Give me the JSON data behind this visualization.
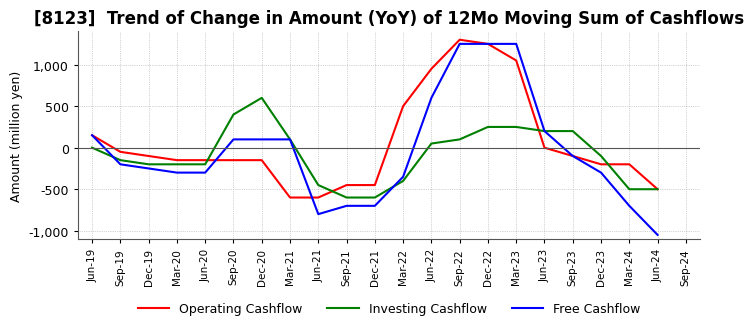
{
  "title": "[8123]  Trend of Change in Amount (YoY) of 12Mo Moving Sum of Cashflows",
  "ylabel": "Amount (million yen)",
  "ylim": [
    -1100,
    1400
  ],
  "yticks": [
    -1000,
    -500,
    0,
    500,
    1000
  ],
  "x_labels": [
    "Jun-19",
    "Sep-19",
    "Dec-19",
    "Mar-20",
    "Jun-20",
    "Sep-20",
    "Dec-20",
    "Mar-21",
    "Jun-21",
    "Sep-21",
    "Dec-21",
    "Mar-22",
    "Jun-22",
    "Sep-22",
    "Dec-22",
    "Mar-23",
    "Jun-23",
    "Sep-23",
    "Dec-23",
    "Mar-24",
    "Jun-24",
    "Sep-24"
  ],
  "operating": [
    150,
    -50,
    -100,
    -150,
    -150,
    -150,
    -150,
    -600,
    -600,
    -450,
    -450,
    500,
    950,
    1300,
    1250,
    1050,
    0,
    -100,
    -200,
    -200,
    -500,
    null
  ],
  "investing": [
    0,
    -150,
    -200,
    -200,
    -200,
    400,
    600,
    100,
    -450,
    -600,
    -600,
    -400,
    50,
    100,
    250,
    250,
    200,
    200,
    -100,
    -500,
    -500,
    null
  ],
  "free": [
    150,
    -200,
    -250,
    -300,
    -300,
    100,
    100,
    100,
    -800,
    -700,
    -700,
    -350,
    600,
    1250,
    1250,
    1250,
    200,
    -100,
    -300,
    -700,
    -1050,
    null
  ],
  "operating_color": "#ff0000",
  "investing_color": "#008000",
  "free_color": "#0000ff",
  "bg_color": "#ffffff",
  "grid_color": "#aaaaaa",
  "title_fontsize": 12,
  "legend_labels": [
    "Operating Cashflow",
    "Investing Cashflow",
    "Free Cashflow"
  ]
}
